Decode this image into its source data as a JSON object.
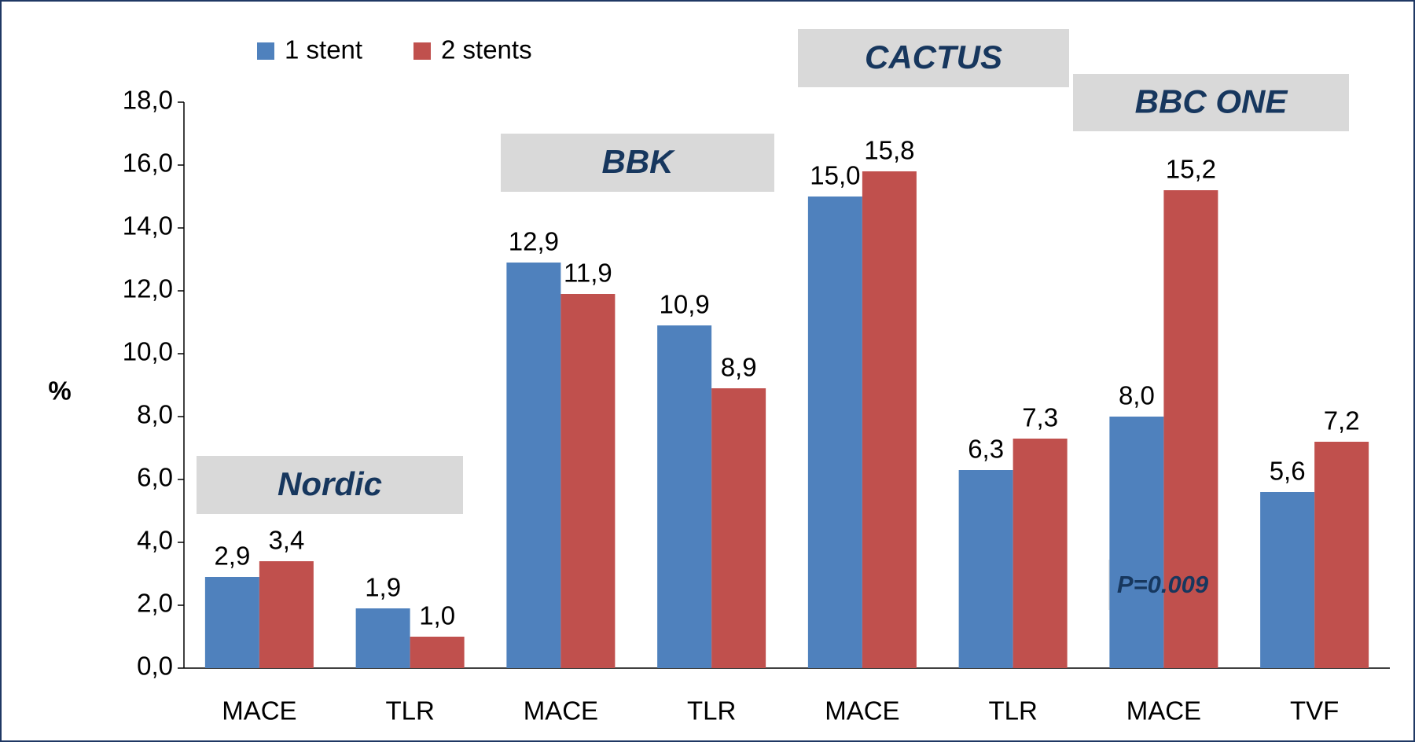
{
  "chart_data": {
    "type": "bar",
    "y_label": "%",
    "categories": [
      "MACE",
      "TLR",
      "MACE",
      "TLR",
      "MACE",
      "TLR",
      "MACE",
      "TVF"
    ],
    "series": [
      {
        "name": "1 stent",
        "color": "#4f81bd",
        "values": [
          2.9,
          1.9,
          12.9,
          10.9,
          15.0,
          6.3,
          8.0,
          5.6
        ],
        "value_labels": [
          "2,9",
          "1,9",
          "12,9",
          "10,9",
          "15,0",
          "6,3",
          "8,0",
          "5,6"
        ]
      },
      {
        "name": "2 stents",
        "color": "#c0504d",
        "values": [
          3.4,
          1.0,
          11.9,
          8.9,
          15.8,
          7.3,
          15.2,
          7.2
        ],
        "value_labels": [
          "3,4",
          "1,0",
          "11,9",
          "8,9",
          "15,8",
          "7,3",
          "15,2",
          "7,2"
        ]
      }
    ],
    "ylim": [
      0,
      18
    ],
    "yticks": [
      {
        "value": 0,
        "label": "0,0"
      },
      {
        "value": 2,
        "label": "2,0"
      },
      {
        "value": 4,
        "label": "4,0"
      },
      {
        "value": 6,
        "label": "6,0"
      },
      {
        "value": 8,
        "label": "8,0"
      },
      {
        "value": 10,
        "label": "10,0"
      },
      {
        "value": 12,
        "label": "12,0"
      },
      {
        "value": 14,
        "label": "14,0"
      },
      {
        "value": 16,
        "label": "16,0"
      },
      {
        "value": 18,
        "label": "18,0"
      }
    ],
    "annotations": [
      "Nordic",
      "BBK",
      "CACTUS",
      "BBC ONE",
      "P=0.009"
    ]
  }
}
